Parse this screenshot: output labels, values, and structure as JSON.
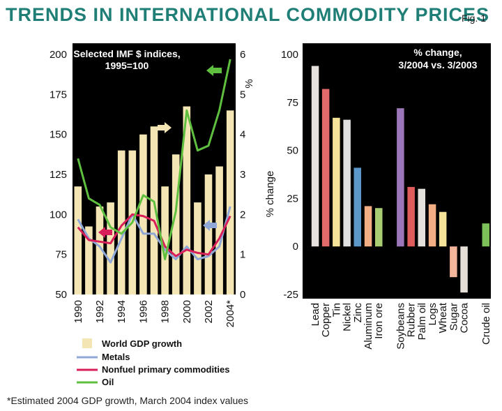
{
  "page": {
    "title": "Trends in international commodity prices",
    "fig_label": "Fig. 1",
    "footnote": "*Estimated 2004 GDP growth, March 2004 index values"
  },
  "colors": {
    "panel_bg": "#000000",
    "gdp_bar": "#f3e6b4",
    "metals": "#8fa8d8",
    "nonfuel": "#d81f5a",
    "oil": "#5fbf3f",
    "title": "#1f7f76"
  },
  "chart_data": [
    {
      "type": "bar+line",
      "title_lines": [
        "Selected IMF $ indices,",
        "1995=100"
      ],
      "x_ticks": [
        "1990",
        "1992",
        "1994",
        "1996",
        "1998",
        "2000",
        "2002",
        "2004*"
      ],
      "years": [
        1990,
        1991,
        1992,
        1993,
        1994,
        1995,
        1996,
        1997,
        1998,
        1999,
        2000,
        2001,
        2002,
        2003,
        2004
      ],
      "left_axis": {
        "min": 50,
        "max": 200,
        "ticks": [
          50,
          75,
          100,
          125,
          150,
          175,
          200
        ]
      },
      "right_axis": {
        "label": "%",
        "min": 0,
        "max": 6,
        "ticks": [
          0,
          1,
          2,
          3,
          4,
          5,
          6
        ]
      },
      "bars": {
        "name": "World GDP growth",
        "axis": "right",
        "values": [
          2.7,
          1.7,
          2.2,
          2.3,
          3.6,
          3.6,
          4.0,
          4.2,
          2.7,
          3.5,
          4.7,
          2.3,
          3.0,
          3.2,
          4.6
        ]
      },
      "series": [
        {
          "name": "Metals",
          "axis": "left",
          "values": [
            97,
            85,
            80,
            70,
            85,
            100,
            88,
            88,
            78,
            72,
            80,
            72,
            74,
            80,
            105
          ]
        },
        {
          "name": "Nonfuel primary commodities",
          "axis": "left",
          "values": [
            92,
            84,
            83,
            82,
            93,
            100,
            99,
            96,
            80,
            74,
            78,
            76,
            75,
            85,
            99
          ]
        },
        {
          "name": "Oil",
          "axis": "left",
          "values": [
            135,
            110,
            106,
            92,
            88,
            95,
            112,
            108,
            72,
            102,
            165,
            140,
            143,
            165,
            197
          ]
        }
      ],
      "legend": [
        "World GDP growth",
        "Metals",
        "Nonfuel primary commodities",
        "Oil"
      ]
    },
    {
      "type": "bar",
      "title_lines": [
        "% change,",
        "3/2004 vs. 3/2003"
      ],
      "ylabel": "% change",
      "y_axis": {
        "min": -25,
        "max": 100,
        "ticks": [
          -25,
          0,
          25,
          50,
          75,
          100
        ]
      },
      "groups": [
        {
          "categories": [
            "Lead",
            "Copper",
            "Tin",
            "Nickel",
            "Zinc",
            "Aluminum",
            "Iron ore"
          ],
          "values": [
            94,
            82,
            67,
            66,
            41,
            21,
            20
          ],
          "colors": [
            "#e6e1dc",
            "#e26a6a",
            "#f6e39a",
            "#e1e1e1",
            "#5b97c9",
            "#f4ae86",
            "#a8cd73"
          ]
        },
        {
          "categories": [
            "Soybeans",
            "Rubber",
            "Palm oil",
            "Logs",
            "Wheat",
            "Sugar",
            "Cocoa"
          ],
          "values": [
            72,
            31,
            30,
            22,
            18,
            -16,
            -24
          ],
          "colors": [
            "#9b76b8",
            "#de5c5c",
            "#e4e0dc",
            "#f4ae86",
            "#f6e39a",
            "#f4b69a",
            "#e6dfd8"
          ]
        },
        {
          "categories": [
            "Crude oil"
          ],
          "values": [
            12
          ],
          "colors": [
            "#7cc05a"
          ]
        }
      ]
    }
  ]
}
